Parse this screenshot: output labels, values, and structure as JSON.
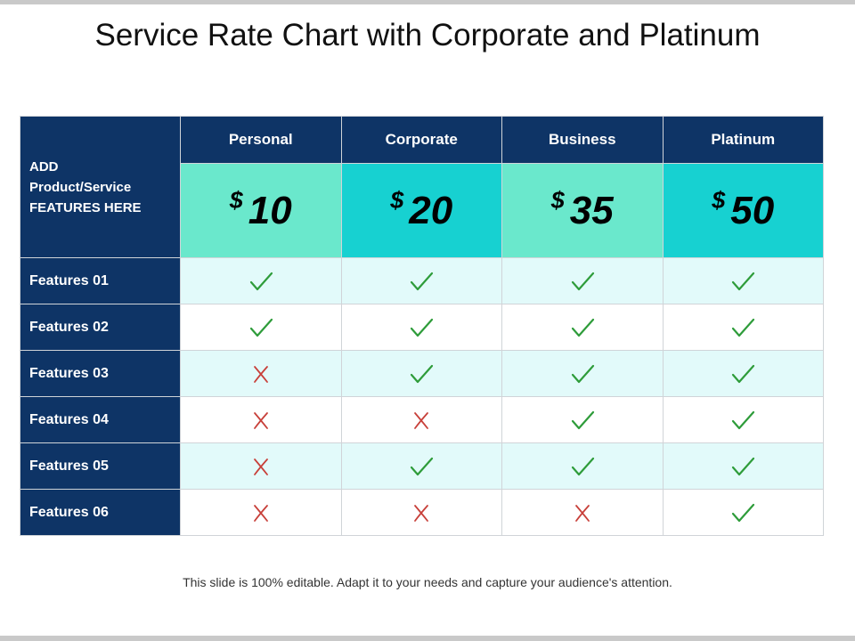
{
  "slide": {
    "title": "Service Rate Chart with Corporate and Platinum",
    "footer": "This slide is 100% editable. Adapt it to your needs and capture your audience's attention."
  },
  "header": {
    "corner_lines": [
      "ADD",
      "Product/Service",
      "FEATURES HERE"
    ]
  },
  "plans": [
    {
      "name": "Personal",
      "currency": "$",
      "price": "10"
    },
    {
      "name": "Corporate",
      "currency": "$",
      "price": "20"
    },
    {
      "name": "Business",
      "currency": "$",
      "price": "35"
    },
    {
      "name": "Platinum",
      "currency": "$",
      "price": "50"
    }
  ],
  "features": [
    {
      "label": "Features 01",
      "included": [
        "check",
        "check",
        "check",
        "check"
      ]
    },
    {
      "label": "Features 02",
      "included": [
        "check",
        "check",
        "check",
        "check"
      ]
    },
    {
      "label": "Features 03",
      "included": [
        "cross",
        "check",
        "check",
        "check"
      ]
    },
    {
      "label": "Features 04",
      "included": [
        "cross",
        "cross",
        "check",
        "check"
      ]
    },
    {
      "label": "Features 05",
      "included": [
        "cross",
        "check",
        "check",
        "check"
      ]
    },
    {
      "label": "Features 06",
      "included": [
        "cross",
        "cross",
        "cross",
        "check"
      ]
    }
  ],
  "colors": {
    "header_navy": "#0e3466",
    "price_light": "#6ae8cc",
    "price_strong": "#17d1d1",
    "row_alt": "#e2fafa",
    "check_green": "#2e9c3a",
    "cross_red": "#c8403a"
  },
  "icons": {
    "included": "check-icon",
    "excluded": "cross-icon"
  }
}
